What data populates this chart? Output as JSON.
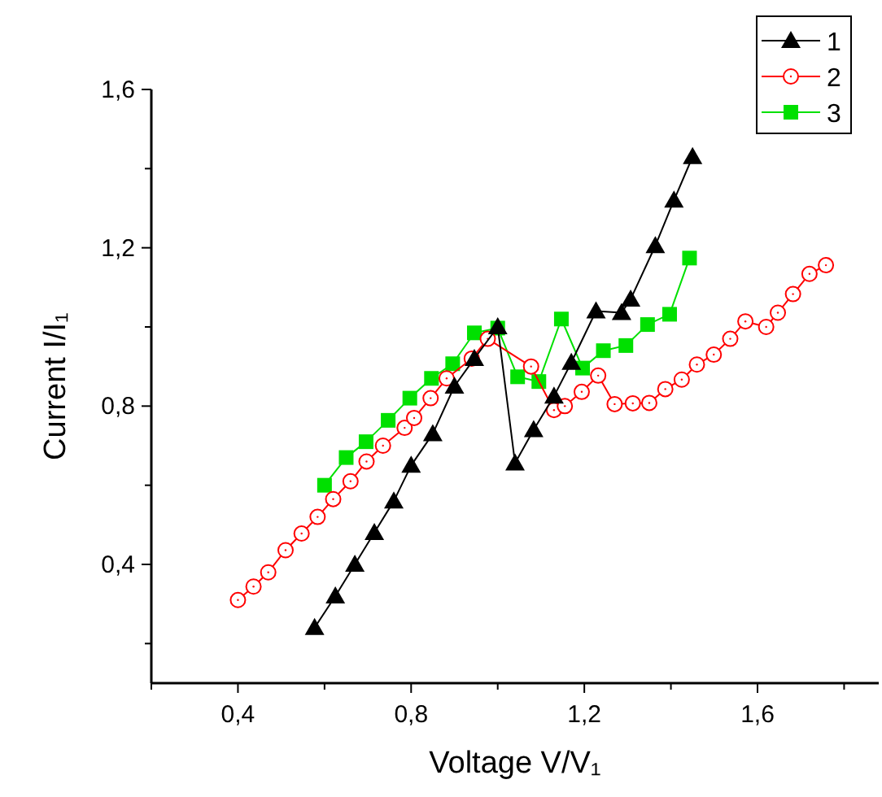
{
  "chart_data": {
    "type": "line",
    "xlabel": "Voltage V/V₁",
    "ylabel": "Current I/I₁",
    "xlim": [
      0.2,
      1.88
    ],
    "ylim": [
      0.1,
      1.6
    ],
    "xticks": [
      {
        "value": 0.2,
        "label": null
      },
      {
        "value": 0.4,
        "label": "0,4"
      },
      {
        "value": 0.6,
        "label": null
      },
      {
        "value": 0.8,
        "label": "0,8"
      },
      {
        "value": 1.0,
        "label": null
      },
      {
        "value": 1.2,
        "label": "1,2"
      },
      {
        "value": 1.4,
        "label": null
      },
      {
        "value": 1.6,
        "label": "1,6"
      },
      {
        "value": 1.8,
        "label": null
      }
    ],
    "yticks": [
      {
        "value": 0.2,
        "label": null
      },
      {
        "value": 0.4,
        "label": "0,4"
      },
      {
        "value": 0.6,
        "label": null
      },
      {
        "value": 0.8,
        "label": "0,8"
      },
      {
        "value": 1.0,
        "label": null
      },
      {
        "value": 1.2,
        "label": "1,2"
      },
      {
        "value": 1.4,
        "label": null
      },
      {
        "value": 1.6,
        "label": "1,6"
      }
    ],
    "grid": false,
    "legend": "top right",
    "line_style": "solid",
    "series": [
      {
        "name": "1",
        "color": "#000000",
        "marker": "triangle",
        "x": [
          0.577,
          0.625,
          0.67,
          0.715,
          0.76,
          0.8,
          0.85,
          0.9,
          0.946,
          1.0,
          1.04,
          1.083,
          1.13,
          1.17,
          1.227,
          1.286,
          1.307,
          1.364,
          1.407,
          1.45
        ],
        "values": [
          0.24,
          0.32,
          0.4,
          0.48,
          0.56,
          0.65,
          0.73,
          0.85,
          0.92,
          1.0,
          0.656,
          0.74,
          0.825,
          0.91,
          1.04,
          1.036,
          1.07,
          1.205,
          1.32,
          1.43
        ]
      },
      {
        "name": "2",
        "color": "#ff0000",
        "marker": "circle",
        "x": [
          0.4,
          0.436,
          0.47,
          0.51,
          0.547,
          0.584,
          0.62,
          0.66,
          0.697,
          0.735,
          0.785,
          0.807,
          0.845,
          0.882,
          0.94,
          0.977,
          1.077,
          1.13,
          1.155,
          1.194,
          1.232,
          1.27,
          1.312,
          1.35,
          1.387,
          1.425,
          1.46,
          1.499,
          1.537,
          1.572,
          1.62,
          1.647,
          1.682,
          1.72,
          1.758
        ],
        "values": [
          0.31,
          0.344,
          0.38,
          0.436,
          0.478,
          0.52,
          0.565,
          0.61,
          0.66,
          0.7,
          0.745,
          0.77,
          0.82,
          0.87,
          0.92,
          0.97,
          0.9,
          0.79,
          0.8,
          0.836,
          0.877,
          0.805,
          0.807,
          0.808,
          0.843,
          0.867,
          0.905,
          0.93,
          0.97,
          1.014,
          1.0,
          1.036,
          1.083,
          1.134,
          1.156
        ]
      },
      {
        "name": "3",
        "color": "#00e000",
        "marker": "square",
        "x": [
          0.6,
          0.65,
          0.696,
          0.747,
          0.797,
          0.847,
          0.896,
          0.946,
          1.0,
          1.046,
          1.095,
          1.147,
          1.196,
          1.244,
          1.296,
          1.346,
          1.397,
          1.443
        ],
        "values": [
          0.6,
          0.67,
          0.71,
          0.764,
          0.82,
          0.87,
          0.907,
          0.985,
          0.997,
          0.874,
          0.862,
          1.02,
          0.896,
          0.94,
          0.953,
          1.006,
          1.032,
          1.174
        ]
      }
    ]
  }
}
